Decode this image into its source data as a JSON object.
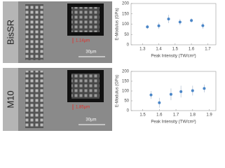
{
  "chart_data": [
    {
      "type": "scatter",
      "panel_label": "BisSR",
      "inset_label": "1.14µm",
      "scale_bar": "30µm",
      "x_label": "Peak Intensity (TW/cm²)",
      "y_label": "E-Modulus (GPa)",
      "x": [
        1.33,
        1.4,
        1.46,
        1.53,
        1.6,
        1.67
      ],
      "values": [
        87,
        92,
        125,
        110,
        118,
        93
      ],
      "errors": [
        10,
        15,
        20,
        15,
        10,
        15
      ],
      "color": "#4a86c8",
      "xlim": [
        1.23,
        1.75
      ],
      "ylim": [
        0,
        200
      ],
      "xticks": [
        1.3,
        1.4,
        1.5,
        1.6,
        1.7
      ],
      "yticks": [
        0,
        50,
        100,
        150,
        200
      ]
    },
    {
      "type": "scatter",
      "panel_label": "M10",
      "inset_label": "1.85µm",
      "scale_bar": "30µm",
      "x_label": "Peak Intensity (TW/cm²)",
      "y_label": "E-Modulus (GPa)",
      "x": [
        1.55,
        1.6,
        1.67,
        1.73,
        1.8,
        1.87
      ],
      "values": [
        80,
        40,
        83,
        97,
        102,
        113
      ],
      "errors": [
        20,
        25,
        30,
        30,
        25,
        20
      ],
      "color": "#4a86c8",
      "xlim": [
        1.43,
        1.94
      ],
      "ylim": [
        0,
        200
      ],
      "xticks": [
        1.5,
        1.6,
        1.7,
        1.8,
        1.9
      ],
      "yticks": [
        0,
        50,
        100,
        150,
        200
      ]
    }
  ]
}
